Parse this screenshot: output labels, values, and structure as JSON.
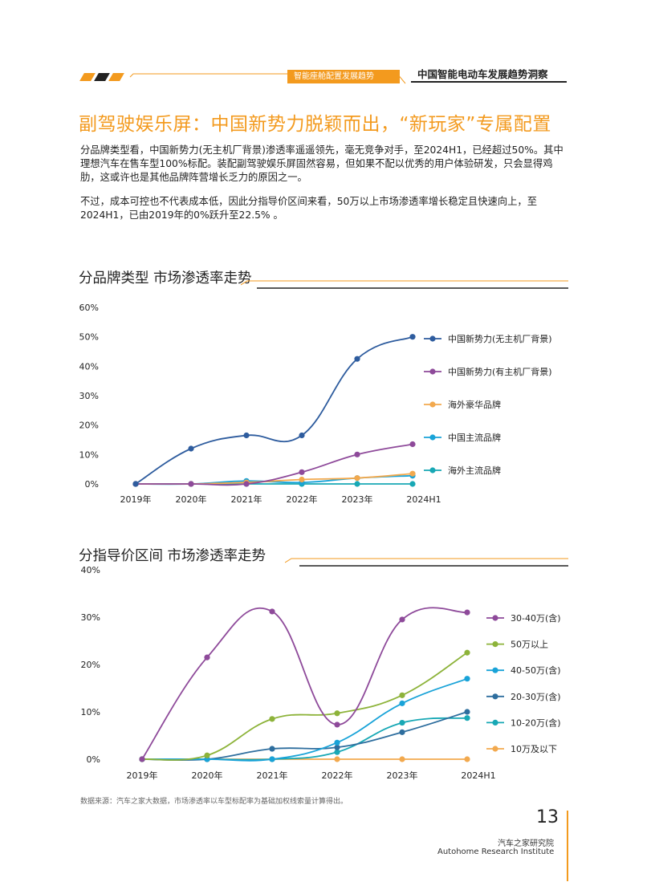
{
  "header": {
    "section_label": "智能座舱配置发展趋势",
    "report_title": "中国智能电动车发展趋势洞察",
    "accent_color": "#f39a1e"
  },
  "main_title": "副驾驶娱乐屏：中国新势力脱颖而出，“新玩家”专属配置",
  "paragraphs": [
    "分品牌类型看，中国新势力(无主机厂背景)渗透率遥遥领先，毫无竞争对手，至2024H1，已经超过50%。其中理想汽车在售车型100%标配。装配副驾驶娱乐屏固然容易，但如果不配以优秀的用户体验研发，只会显得鸡肋，这或许也是其他品牌阵营增长乏力的原因之一。",
    "不过，成本可控也不代表成本低，因此分指导价区间来看，50万以上市场渗透率增长稳定且快速向上，至2024H1，已由2019年的0%跃升至22.5%  。"
  ],
  "chart_data": [
    {
      "type": "line",
      "title": "分品牌类型  市场渗透率走势",
      "categories": [
        "2019年",
        "2020年",
        "2021年",
        "2022年",
        "2023年",
        "2024H1"
      ],
      "ylim": [
        0,
        60
      ],
      "yticks": [
        "0%",
        "10%",
        "20%",
        "30%",
        "40%",
        "50%",
        "60%"
      ],
      "legend_position": "right",
      "series": [
        {
          "name": "中国新势力(无主机厂背景)",
          "color": "#2e5c9e",
          "values": [
            0,
            12,
            16.5,
            16.5,
            42.5,
            50
          ]
        },
        {
          "name": "中国新势力(有主机厂背景)",
          "color": "#8e4a9a",
          "values": [
            0,
            0,
            0,
            4,
            10,
            13.5
          ]
        },
        {
          "name": "海外豪华品牌",
          "color": "#f2a94e",
          "values": [
            0,
            0,
            0.5,
            1.5,
            2,
            3.5
          ]
        },
        {
          "name": "中国主流品牌",
          "color": "#19a3d8",
          "values": [
            0,
            0,
            1,
            0.5,
            2,
            2.8
          ]
        },
        {
          "name": "海外主流品牌",
          "color": "#18a8b5",
          "values": [
            0,
            0,
            0,
            0,
            0,
            0
          ]
        }
      ]
    },
    {
      "type": "line",
      "title": "分指导价区间  市场渗透率走势",
      "categories": [
        "2019年",
        "2020年",
        "2021年",
        "2022年",
        "2023年",
        "2024H1"
      ],
      "ylim": [
        0,
        40
      ],
      "yticks": [
        "0%",
        "10%",
        "20%",
        "30%",
        "40%"
      ],
      "legend_position": "right",
      "series": [
        {
          "name": "30-40万(含)",
          "color": "#8e4a9a",
          "values": [
            0,
            21.5,
            31.2,
            7.3,
            29.5,
            31
          ]
        },
        {
          "name": "50万以上",
          "color": "#8db33a",
          "values": [
            0,
            0.8,
            8.5,
            9.7,
            13.5,
            22.5
          ]
        },
        {
          "name": "40-50万(含)",
          "color": "#19a3d8",
          "values": [
            0,
            0,
            0,
            3.5,
            11.8,
            17
          ]
        },
        {
          "name": "20-30万(含)",
          "color": "#2e6e9e",
          "values": [
            0,
            0,
            2.2,
            2.5,
            5.7,
            10
          ]
        },
        {
          "name": "10-20万(含)",
          "color": "#18a8b5",
          "values": [
            0,
            0,
            0,
            1.5,
            7.7,
            8.7
          ]
        },
        {
          "name": "10万及以下",
          "color": "#f2a94e",
          "values": [
            0,
            0,
            0,
            0,
            0,
            0
          ]
        }
      ]
    }
  ],
  "footnote": "数据来源：汽车之家大数据，市场渗透率以车型标配率为基础加权线索量计算得出。",
  "page_number": "13",
  "institute": {
    "cn": "汽车之家研究院",
    "en": "Autohome Research Institute"
  }
}
